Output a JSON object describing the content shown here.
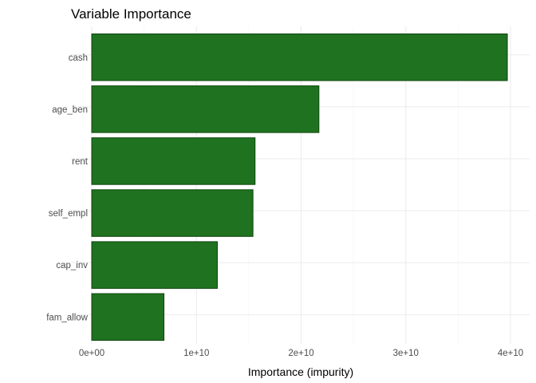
{
  "chart_data": {
    "type": "bar",
    "orientation": "horizontal",
    "title": "Variable Importance",
    "xlabel": "Importance (impurity)",
    "ylabel": "",
    "categories": [
      "cash",
      "age_ben",
      "rent",
      "self_empl",
      "cap_inv",
      "fam_allow"
    ],
    "values": [
      39700000000.0,
      21700000000.0,
      15600000000.0,
      15400000000.0,
      12000000000.0,
      6900000000.0
    ],
    "xlim": [
      0,
      40000000000.0
    ],
    "x_ticks": [
      0,
      10000000000.0,
      20000000000.0,
      30000000000.0,
      40000000000.0
    ],
    "x_tick_labels": [
      "0e+00",
      "1e+10",
      "2e+10",
      "3e+10",
      "4e+10"
    ],
    "bar_color": "#1f721f",
    "bar_edge_color": "#0e440e",
    "grid": true,
    "legend": "none"
  }
}
